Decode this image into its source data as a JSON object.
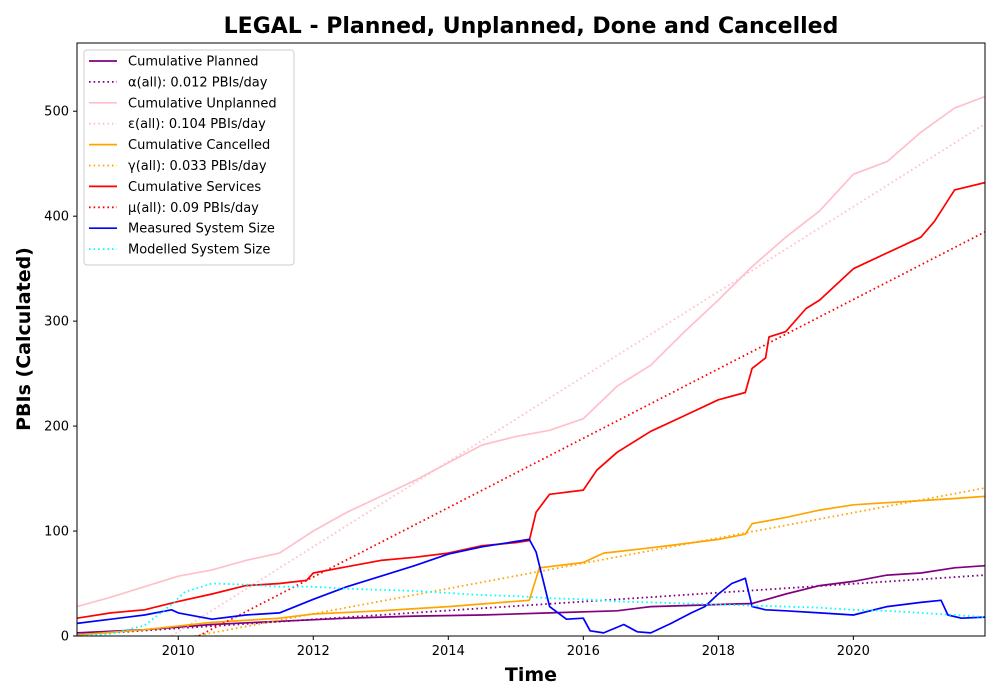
{
  "chart_data": {
    "type": "line",
    "title": "LEGAL - Planned, Unplanned, Done  and Cancelled",
    "xlabel": "Time",
    "ylabel": "PBIs (Calculated)",
    "xlim": [
      2008.5,
      2021.95
    ],
    "ylim": [
      0,
      565
    ],
    "x_ticks": [
      2010,
      2012,
      2014,
      2016,
      2018,
      2020
    ],
    "x_tick_labels": [
      "2010",
      "2012",
      "2014",
      "2016",
      "2018",
      "2020"
    ],
    "y_ticks": [
      0,
      100,
      200,
      300,
      400,
      500
    ],
    "y_tick_labels": [
      "0",
      "100",
      "200",
      "300",
      "400",
      "500"
    ],
    "grid": false,
    "legend_position": "top-left",
    "series": [
      {
        "name": "Cumulative Planned",
        "color": "#800080",
        "style": "solid",
        "x": [
          2008.5,
          2009.5,
          2010.5,
          2011.5,
          2012.5,
          2013.5,
          2014.5,
          2015.5,
          2016.5,
          2017.0,
          2017.5,
          2018.0,
          2018.5,
          2019.0,
          2019.5,
          2020.0,
          2020.5,
          2021.0,
          2021.5,
          2021.95
        ],
        "y": [
          3,
          6,
          11,
          14,
          17,
          19,
          20,
          22,
          24,
          28,
          29,
          30,
          31,
          40,
          48,
          52,
          58,
          60,
          65,
          67
        ]
      },
      {
        "name": "α(all): 0.012 PBIs/day",
        "color": "#800080",
        "style": "dotted",
        "x": [
          2008.5,
          2021.95
        ],
        "y": [
          1,
          58
        ]
      },
      {
        "name": "Cumulative Unplanned",
        "color": "#ffc0cb",
        "style": "solid",
        "x": [
          2008.5,
          2009.0,
          2009.5,
          2010.0,
          2010.5,
          2011.0,
          2011.5,
          2012.0,
          2012.5,
          2013.0,
          2013.5,
          2014.0,
          2014.5,
          2015.0,
          2015.5,
          2016.0,
          2016.5,
          2017.0,
          2017.5,
          2018.0,
          2018.5,
          2019.0,
          2019.5,
          2020.0,
          2020.5,
          2021.0,
          2021.5,
          2021.95
        ],
        "y": [
          28,
          37,
          47,
          57,
          63,
          72,
          79,
          100,
          118,
          133,
          148,
          165,
          182,
          190,
          196,
          207,
          238,
          258,
          290,
          320,
          352,
          380,
          405,
          440,
          452,
          480,
          503,
          514
        ]
      },
      {
        "name": "ε(all): 0.104 PBIs/day",
        "color": "#ffc0cb",
        "style": "dotted",
        "x": [
          2009.9,
          2021.95
        ],
        "y": [
          0,
          488
        ]
      },
      {
        "name": "Cumulative Cancelled",
        "color": "#ffa500",
        "style": "solid",
        "x": [
          2008.5,
          2009.5,
          2010.5,
          2011.5,
          2012.0,
          2013.0,
          2014.0,
          2014.8,
          2015.2,
          2015.35,
          2016.0,
          2016.3,
          2017.0,
          2017.5,
          2018.0,
          2018.4,
          2018.5,
          2019.0,
          2019.5,
          2020.0,
          2020.5,
          2021.0,
          2021.5,
          2021.95
        ],
        "y": [
          1,
          6,
          13,
          17,
          21,
          24,
          28,
          32,
          34,
          65,
          70,
          79,
          84,
          88,
          92,
          97,
          107,
          113,
          120,
          125,
          127,
          129,
          131,
          133
        ]
      },
      {
        "name": "γ(all): 0.033 PBIs/day",
        "color": "#ffa500",
        "style": "dotted",
        "x": [
          2010.25,
          2021.95
        ],
        "y": [
          0,
          141
        ]
      },
      {
        "name": "Cumulative Services",
        "color": "#ff0000",
        "style": "solid",
        "x": [
          2008.5,
          2009.0,
          2009.5,
          2010.0,
          2010.5,
          2011.0,
          2011.5,
          2011.9,
          2012.0,
          2012.5,
          2013.0,
          2013.5,
          2014.0,
          2014.5,
          2015.0,
          2015.2,
          2015.3,
          2015.5,
          2016.0,
          2016.2,
          2016.5,
          2017.0,
          2017.5,
          2018.0,
          2018.4,
          2018.5,
          2018.7,
          2018.75,
          2019.0,
          2019.3,
          2019.5,
          2020.0,
          2020.5,
          2021.0,
          2021.2,
          2021.5,
          2021.95
        ],
        "y": [
          17,
          22,
          25,
          33,
          40,
          48,
          50,
          53,
          60,
          66,
          72,
          75,
          79,
          86,
          89,
          91,
          118,
          135,
          139,
          158,
          175,
          195,
          210,
          225,
          232,
          255,
          265,
          285,
          290,
          312,
          320,
          350,
          365,
          380,
          395,
          425,
          432
        ]
      },
      {
        "name": "μ(all): 0.09 PBIs/day",
        "color": "#ff0000",
        "style": "dotted",
        "x": [
          2010.3,
          2021.95
        ],
        "y": [
          0,
          385
        ]
      },
      {
        "name": "Measured System Size",
        "color": "#0000ff",
        "style": "solid",
        "x": [
          2008.5,
          2009.0,
          2009.5,
          2009.9,
          2010.0,
          2010.5,
          2011.0,
          2011.5,
          2012.0,
          2012.5,
          2013.0,
          2013.5,
          2014.0,
          2014.5,
          2015.0,
          2015.2,
          2015.3,
          2015.5,
          2015.75,
          2016.0,
          2016.1,
          2016.3,
          2016.6,
          2016.8,
          2017.0,
          2017.3,
          2017.6,
          2017.8,
          2018.0,
          2018.2,
          2018.4,
          2018.5,
          2018.7,
          2019.0,
          2019.5,
          2020.0,
          2020.5,
          2021.0,
          2021.3,
          2021.4,
          2021.6,
          2021.95
        ],
        "y": [
          12,
          16,
          20,
          25,
          22,
          16,
          20,
          22,
          35,
          47,
          57,
          67,
          78,
          85,
          90,
          92,
          80,
          28,
          16,
          17,
          5,
          3,
          11,
          4,
          3,
          12,
          22,
          28,
          40,
          50,
          55,
          28,
          25,
          24,
          22,
          20,
          28,
          32,
          34,
          20,
          17,
          18
        ]
      },
      {
        "name": "Modelled System Size",
        "color": "#00ffff",
        "style": "dotted",
        "x": [
          2008.5,
          2009.0,
          2009.5,
          2009.9,
          2010.1,
          2010.5,
          2011.0,
          2011.5,
          2012.0,
          2012.5,
          2013.0,
          2013.5,
          2014.0,
          2014.5,
          2015.0,
          2015.5,
          2016.0,
          2016.5,
          2017.0,
          2017.5,
          2018.0,
          2018.5,
          2019.0,
          2019.5,
          2020.0,
          2020.5,
          2021.0,
          2021.5,
          2021.95
        ],
        "y": [
          0,
          2,
          10,
          30,
          42,
          50,
          49,
          47,
          47,
          45,
          44,
          43,
          41,
          39,
          38,
          36,
          35,
          33,
          32,
          31,
          30,
          29,
          28,
          27,
          25,
          24,
          22,
          20,
          18
        ]
      }
    ]
  }
}
